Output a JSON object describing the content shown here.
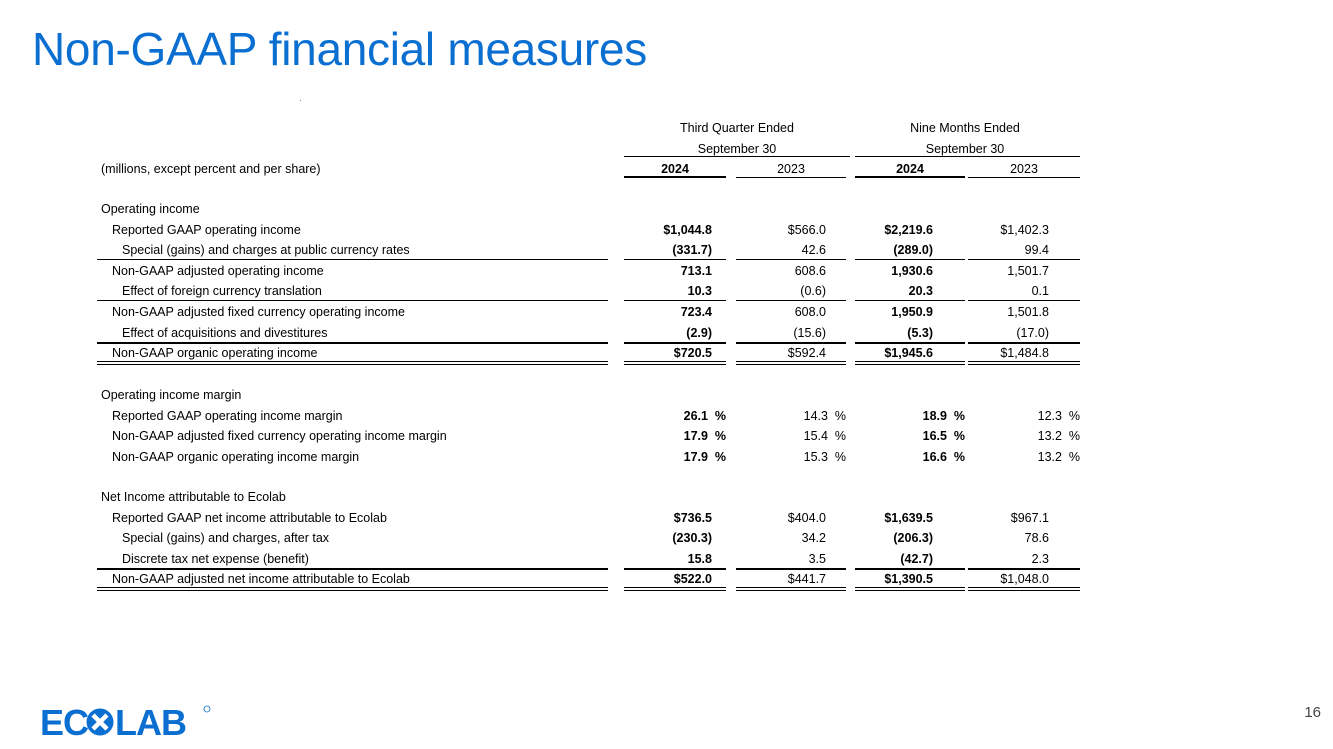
{
  "title": "Non-GAAP financial measures",
  "page_number": "16",
  "logo": {
    "text": "ECOLAB",
    "brand_color": "#0a6fd1"
  },
  "header": {
    "group1": {
      "line1": "Third Quarter Ended",
      "line2": "September 30"
    },
    "group2": {
      "line1": "Nine Months Ended",
      "line2": "September 30"
    },
    "units": "(millions, except percent and per share)",
    "cols": [
      "2024",
      "2023",
      "2024",
      "2023"
    ]
  },
  "sections": [
    {
      "heading": "Operating income",
      "rows": [
        {
          "label": "Reported GAAP operating income",
          "indent": 1,
          "values": [
            "$1,044.8",
            "$566.0",
            "$2,219.6",
            "$1,402.3"
          ]
        },
        {
          "label": "Special (gains) and charges at public currency rates",
          "indent": 2,
          "values": [
            "(331.7)",
            "42.6",
            "(289.0)",
            "99.4"
          ]
        },
        {
          "label": "Non-GAAP adjusted operating income",
          "indent": 1,
          "values": [
            "713.1",
            "608.6",
            "1,930.6",
            "1,501.7"
          ]
        },
        {
          "label": "Effect of foreign currency translation",
          "indent": 2,
          "values": [
            "10.3",
            "(0.6)",
            "20.3",
            "0.1"
          ]
        },
        {
          "label": "Non-GAAP adjusted fixed currency operating income",
          "indent": 1,
          "values": [
            "723.4",
            "608.0",
            "1,950.9",
            "1,501.8"
          ]
        },
        {
          "label": "Effect of acquisitions and divestitures",
          "indent": 2,
          "values": [
            "(2.9)",
            "(15.6)",
            "(5.3)",
            "(17.0)"
          ]
        },
        {
          "label": "Non-GAAP organic operating income",
          "indent": 1,
          "values": [
            "$720.5",
            "$592.4",
            "$1,945.6",
            "$1,484.8"
          ]
        }
      ]
    },
    {
      "heading": "Operating income margin",
      "rows": [
        {
          "label": "Reported GAAP operating income margin",
          "indent": 1,
          "values": [
            "26.1",
            "14.3",
            "18.9",
            "12.3"
          ]
        },
        {
          "label": "Non-GAAP adjusted fixed currency operating income margin",
          "indent": 1,
          "values": [
            "17.9",
            "15.4",
            "16.5",
            "13.2"
          ]
        },
        {
          "label": "Non-GAAP organic operating income margin",
          "indent": 1,
          "values": [
            "17.9",
            "15.3",
            "16.6",
            "13.2"
          ]
        }
      ],
      "percent_sign": "%"
    },
    {
      "heading": "Net Income attributable to Ecolab",
      "rows": [
        {
          "label": "Reported GAAP net income attributable to Ecolab",
          "indent": 1,
          "values": [
            "$736.5",
            "$404.0",
            "$1,639.5",
            "$967.1"
          ]
        },
        {
          "label": "Special (gains) and charges, after tax",
          "indent": 2,
          "values": [
            "(230.3)",
            "34.2",
            "(206.3)",
            "78.6"
          ]
        },
        {
          "label": "Discrete tax net expense (benefit)",
          "indent": 2,
          "values": [
            "15.8",
            "3.5",
            "(42.7)",
            "2.3"
          ]
        },
        {
          "label": "Non-GAAP adjusted net income attributable to Ecolab",
          "indent": 1,
          "values": [
            "$522.0",
            "$441.7",
            "$1,390.5",
            "$1,048.0"
          ]
        }
      ]
    }
  ]
}
